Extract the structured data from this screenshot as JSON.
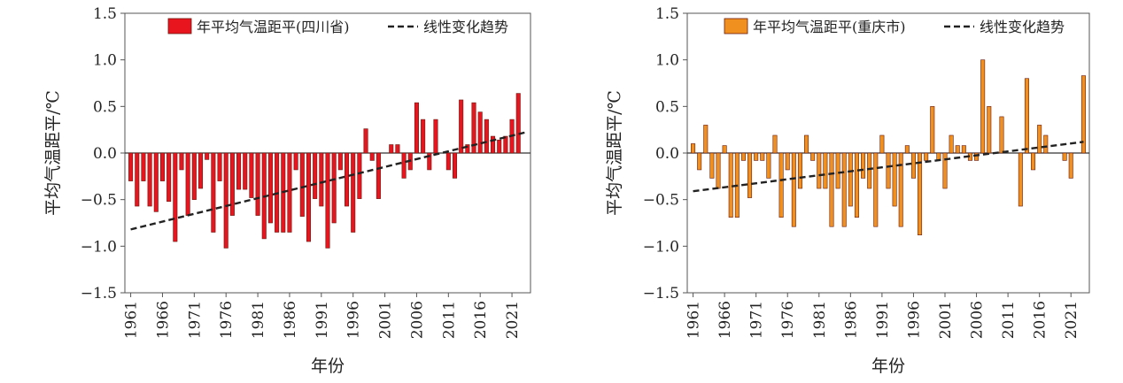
{
  "chart_data": [
    {
      "type": "bar",
      "xlabel": "年份",
      "ylabel": "平均气温距平/℃",
      "ylim": [
        -1.5,
        1.5
      ],
      "yticks": [
        "1.5",
        "1.0",
        "0.5",
        "0.0",
        "−0.5",
        "−1.0",
        "−1.5"
      ],
      "xticks": [
        "1961",
        "1966",
        "1971",
        "1976",
        "1981",
        "1986",
        "1991",
        "1996",
        "2001",
        "2006",
        "2011",
        "2016",
        "2021"
      ],
      "bar_color": "#e8141e",
      "legend_position": "top",
      "series": [
        {
          "name": "年平均气温距平(四川省)",
          "x": [
            1961,
            1962,
            1963,
            1964,
            1965,
            1966,
            1967,
            1968,
            1969,
            1970,
            1971,
            1972,
            1973,
            1974,
            1975,
            1976,
            1977,
            1978,
            1979,
            1980,
            1981,
            1982,
            1983,
            1984,
            1985,
            1986,
            1987,
            1988,
            1989,
            1990,
            1991,
            1992,
            1993,
            1994,
            1995,
            1996,
            1997,
            1998,
            1999,
            2000,
            2001,
            2002,
            2003,
            2004,
            2005,
            2006,
            2007,
            2008,
            2009,
            2010,
            2011,
            2012,
            2013,
            2014,
            2015,
            2016,
            2017,
            2018,
            2019,
            2020,
            2021,
            2022,
            2023
          ],
          "values": [
            -0.3,
            -0.57,
            -0.3,
            -0.57,
            -0.63,
            -0.3,
            -0.52,
            -0.95,
            -0.18,
            -0.67,
            -0.5,
            -0.38,
            -0.07,
            -0.85,
            -0.3,
            -1.02,
            -0.67,
            -0.39,
            -0.39,
            -0.48,
            -0.67,
            -0.92,
            -0.75,
            -0.85,
            -0.85,
            -0.85,
            -0.18,
            -0.68,
            -0.95,
            -0.49,
            -0.57,
            -1.02,
            -0.75,
            -0.18,
            -0.57,
            -0.85,
            -0.49,
            0.26,
            -0.08,
            -0.49,
            0.0,
            0.09,
            0.09,
            -0.27,
            -0.18,
            0.54,
            0.36,
            -0.18,
            0.36,
            0.0,
            -0.18,
            -0.27,
            0.57,
            0.09,
            0.54,
            0.44,
            0.36,
            0.18,
            0.14,
            0.18,
            0.36,
            0.64,
            0.0
          ]
        },
        {
          "name": "线性变化趋势",
          "line_start": [
            1961,
            -0.82
          ],
          "line_end": [
            2023,
            0.22
          ]
        }
      ]
    },
    {
      "type": "bar",
      "xlabel": "年份",
      "ylabel": "平均气温距平/℃",
      "ylim": [
        -1.5,
        1.5
      ],
      "yticks": [
        "1.5",
        "1.0",
        "0.5",
        "0.0",
        "−0.5",
        "−1.0",
        "−1.5"
      ],
      "xticks": [
        "1961",
        "1966",
        "1971",
        "1976",
        "1981",
        "1986",
        "1991",
        "1996",
        "2001",
        "2006",
        "2011",
        "2016",
        "2021"
      ],
      "bar_color": "#f0901e",
      "legend_position": "top",
      "series": [
        {
          "name": "年平均气温距平(重庆市)",
          "x": [
            1961,
            1962,
            1963,
            1964,
            1965,
            1966,
            1967,
            1968,
            1969,
            1970,
            1971,
            1972,
            1973,
            1974,
            1975,
            1976,
            1977,
            1978,
            1979,
            1980,
            1981,
            1982,
            1983,
            1984,
            1985,
            1986,
            1987,
            1988,
            1989,
            1990,
            1991,
            1992,
            1993,
            1994,
            1995,
            1996,
            1997,
            1998,
            1999,
            2000,
            2001,
            2002,
            2003,
            2004,
            2005,
            2006,
            2007,
            2008,
            2009,
            2010,
            2011,
            2012,
            2013,
            2014,
            2015,
            2016,
            2017,
            2018,
            2019,
            2020,
            2021,
            2022,
            2023
          ],
          "values": [
            0.1,
            -0.18,
            0.3,
            -0.27,
            -0.38,
            0.08,
            -0.69,
            -0.69,
            -0.08,
            -0.48,
            -0.08,
            -0.08,
            -0.27,
            0.19,
            -0.69,
            -0.18,
            -0.79,
            -0.38,
            0.19,
            -0.08,
            -0.38,
            -0.38,
            -0.79,
            -0.38,
            -0.79,
            -0.57,
            -0.69,
            -0.27,
            -0.38,
            -0.79,
            0.19,
            -0.38,
            -0.57,
            -0.79,
            0.08,
            -0.27,
            -0.88,
            -0.08,
            0.5,
            -0.08,
            -0.38,
            0.19,
            0.08,
            0.08,
            -0.08,
            -0.08,
            1.0,
            0.5,
            0.0,
            0.39,
            0.0,
            0.0,
            -0.57,
            0.8,
            -0.18,
            0.3,
            0.19,
            0.0,
            0.0,
            -0.08,
            -0.27,
            0.0,
            0.83
          ]
        },
        {
          "name": "线性变化趋势",
          "line_start": [
            1961,
            -0.41
          ],
          "line_end": [
            2023,
            0.12
          ]
        }
      ]
    }
  ]
}
